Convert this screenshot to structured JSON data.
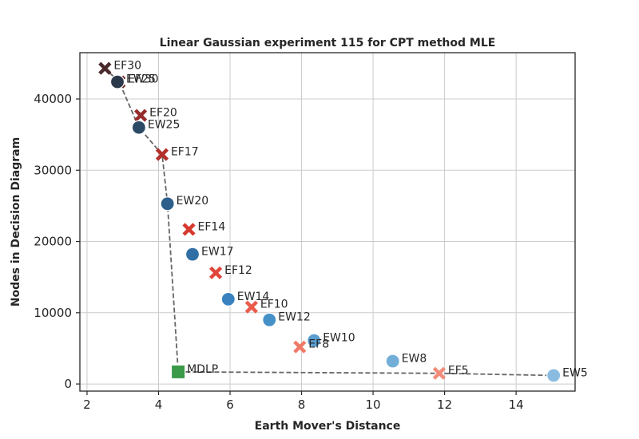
{
  "chart_data": {
    "type": "scatter",
    "title": "Linear Gaussian experiment 115 for CPT method MLE",
    "xlabel": "Earth Mover's Distance",
    "ylabel": "Nodes in Decision Diagram",
    "xlim": [
      1.8,
      15.65
    ],
    "ylim": [
      -1000,
      46500
    ],
    "xticks": [
      2,
      4,
      6,
      8,
      10,
      12,
      14
    ],
    "yticks": [
      0,
      10000,
      20000,
      30000,
      40000
    ],
    "grid": true,
    "points": [
      {
        "label": "EF30",
        "x": 2.5,
        "y": 44300,
        "marker": "x",
        "color": "#4a2a2a"
      },
      {
        "label": "EF25",
        "x": 2.9,
        "y": 42400,
        "marker": "x",
        "color": "#6b2828"
      },
      {
        "label": "EW30",
        "x": 2.85,
        "y": 42400,
        "marker": "circle",
        "color": "#2b3a4a"
      },
      {
        "label": "EF20",
        "x": 3.5,
        "y": 37700,
        "marker": "x",
        "color": "#962d2d"
      },
      {
        "label": "EW25",
        "x": 3.45,
        "y": 36000,
        "marker": "circle",
        "color": "#2c4a66"
      },
      {
        "label": "EF17",
        "x": 4.1,
        "y": 32200,
        "marker": "x",
        "color": "#b3302c"
      },
      {
        "label": "EW20",
        "x": 4.25,
        "y": 25300,
        "marker": "circle",
        "color": "#2e5f8a"
      },
      {
        "label": "EF14",
        "x": 4.85,
        "y": 21700,
        "marker": "x",
        "color": "#d63a2f"
      },
      {
        "label": "EW17",
        "x": 4.95,
        "y": 18200,
        "marker": "circle",
        "color": "#2f6fa3"
      },
      {
        "label": "EF12",
        "x": 5.6,
        "y": 15600,
        "marker": "x",
        "color": "#e0473a"
      },
      {
        "label": "EW14",
        "x": 5.95,
        "y": 11900,
        "marker": "circle",
        "color": "#3a82bf"
      },
      {
        "label": "EF10",
        "x": 6.6,
        "y": 10800,
        "marker": "x",
        "color": "#ea5a4a"
      },
      {
        "label": "EW12",
        "x": 7.1,
        "y": 9000,
        "marker": "circle",
        "color": "#4690c8"
      },
      {
        "label": "EW10",
        "x": 8.35,
        "y": 6100,
        "marker": "circle",
        "color": "#5a9ed0"
      },
      {
        "label": "EF8",
        "x": 7.95,
        "y": 5200,
        "marker": "x",
        "color": "#f07a68"
      },
      {
        "label": "EW8",
        "x": 10.55,
        "y": 3200,
        "marker": "circle",
        "color": "#72aed8"
      },
      {
        "label": "EF5",
        "x": 11.85,
        "y": 1500,
        "marker": "x",
        "color": "#f28c7a"
      },
      {
        "label": "EW5",
        "x": 15.05,
        "y": 1200,
        "marker": "circle",
        "color": "#8bbce0"
      },
      {
        "label": "MDLP",
        "x": 4.55,
        "y": 1700,
        "marker": "square",
        "color": "#3a9a4a"
      }
    ],
    "frontier": {
      "line_style": "dashed",
      "color": "#666666",
      "points": [
        {
          "x": 2.5,
          "y": 44300
        },
        {
          "x": 2.9,
          "y": 42400
        },
        {
          "x": 3.45,
          "y": 36000
        },
        {
          "x": 4.1,
          "y": 32200
        },
        {
          "x": 4.25,
          "y": 25300
        },
        {
          "x": 4.55,
          "y": 1700
        },
        {
          "x": 11.85,
          "y": 1500
        },
        {
          "x": 15.05,
          "y": 1200
        }
      ]
    }
  }
}
